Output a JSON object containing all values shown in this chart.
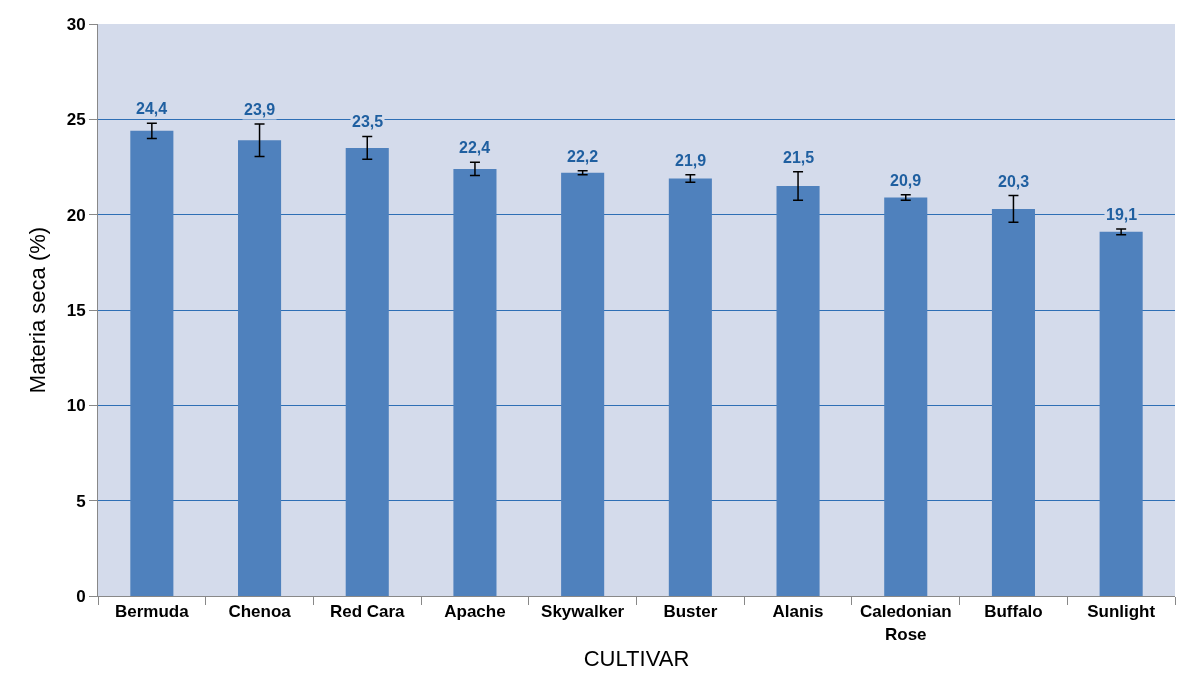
{
  "chart_data": {
    "type": "bar",
    "xlabel": "CULTIVAR",
    "ylabel": "Materia seca (%)",
    "categories": [
      "Bermuda",
      "Chenoa",
      "Red Cara",
      "Apache",
      "Skywalker",
      "Buster",
      "Alanis",
      "Caledonian Rose",
      "Buffalo",
      "Sunlight"
    ],
    "values": [
      24.4,
      23.9,
      23.5,
      22.4,
      22.2,
      21.9,
      21.5,
      20.9,
      20.3,
      19.1
    ],
    "value_labels": [
      "24,4",
      "23,9",
      "23,5",
      "22,4",
      "22,2",
      "21,9",
      "21,5",
      "20,9",
      "20,3",
      "19,1"
    ],
    "errors": [
      0.4,
      0.85,
      0.6,
      0.35,
      0.1,
      0.2,
      0.75,
      0.15,
      0.7,
      0.15
    ],
    "color": "#4f81bd",
    "ylim": [
      0,
      30
    ],
    "yticks": [
      0,
      5,
      10,
      15,
      20,
      25,
      30
    ],
    "grid": "y"
  }
}
